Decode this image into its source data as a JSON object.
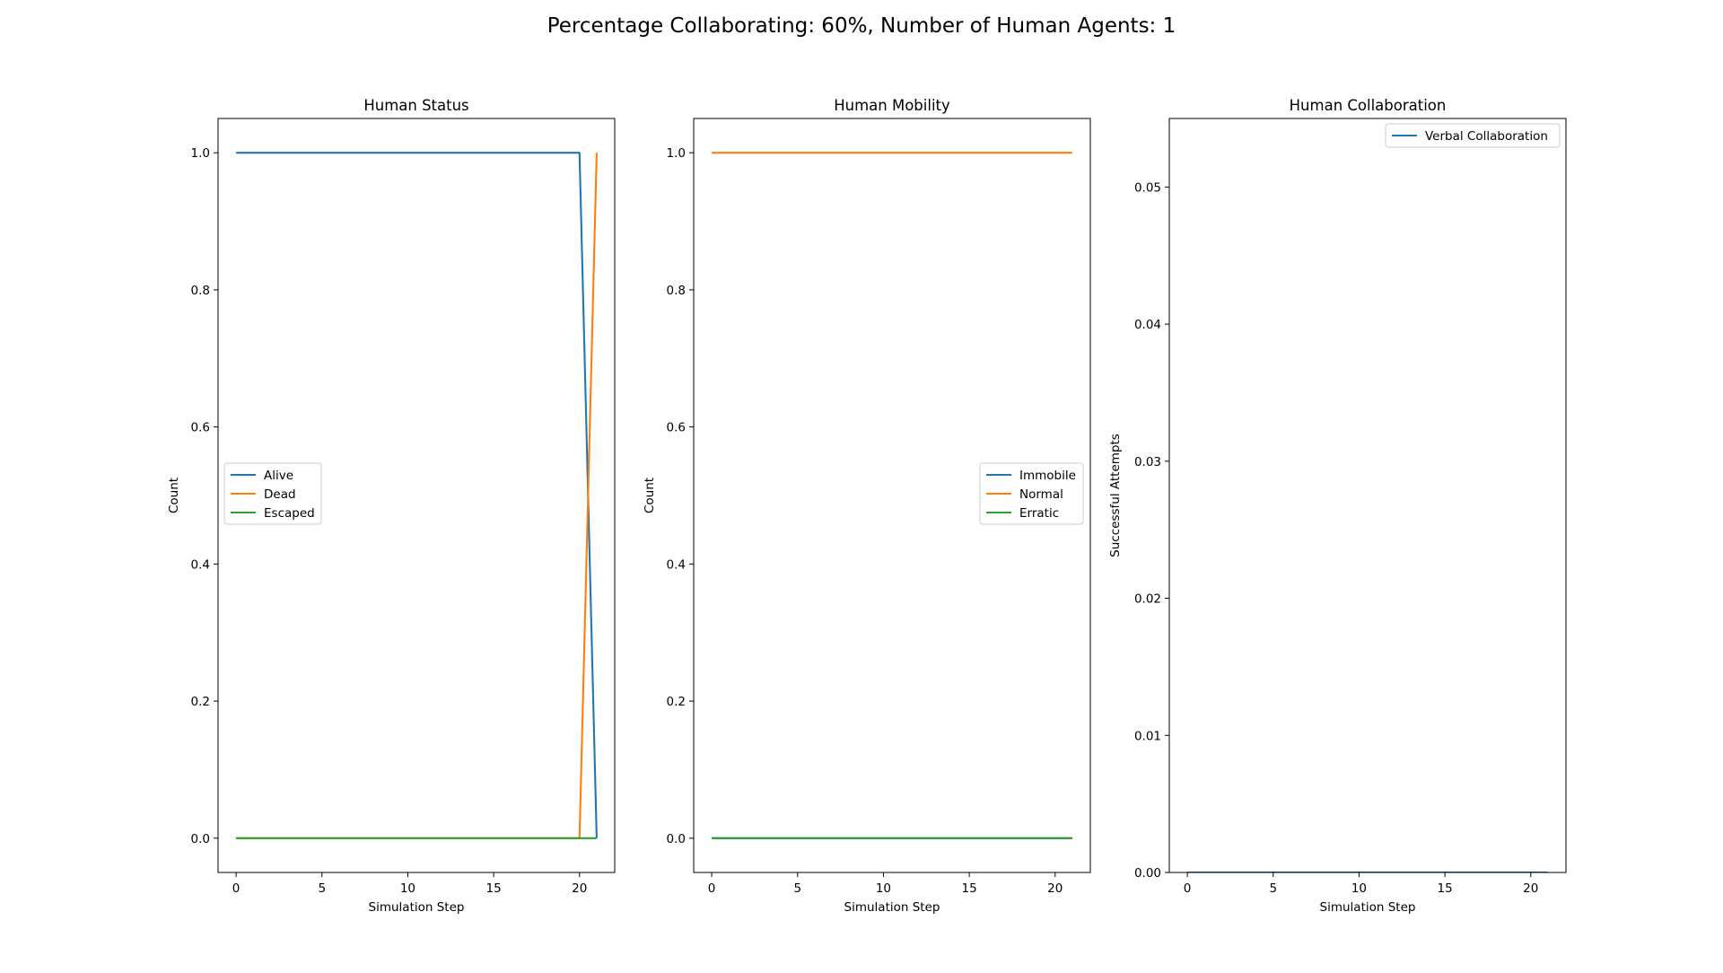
{
  "figure": {
    "title": "Percentage Collaborating: 60%, Number of Human Agents: 1"
  },
  "colors": {
    "blue": "#1f77b4",
    "orange": "#ff7f0e",
    "green": "#2ca02c"
  },
  "chart_data": [
    {
      "type": "line",
      "title": "Human Status",
      "xlabel": "Simulation Step",
      "ylabel": "Count",
      "xlim": [
        -1.05,
        22.05
      ],
      "ylim": [
        -0.05,
        1.05
      ],
      "xticks": [
        0,
        5,
        10,
        15,
        20
      ],
      "yticks": [
        0.0,
        0.2,
        0.4,
        0.6,
        0.8,
        1.0
      ],
      "ytick_labels": [
        "0.0",
        "0.2",
        "0.4",
        "0.6",
        "0.8",
        "1.0"
      ],
      "grid": false,
      "legend": "center-left",
      "x": [
        0,
        1,
        2,
        3,
        4,
        5,
        6,
        7,
        8,
        9,
        10,
        11,
        12,
        13,
        14,
        15,
        16,
        17,
        18,
        19,
        20,
        21
      ],
      "series": [
        {
          "name": "Alive",
          "color": "#1f77b4",
          "values": [
            1,
            1,
            1,
            1,
            1,
            1,
            1,
            1,
            1,
            1,
            1,
            1,
            1,
            1,
            1,
            1,
            1,
            1,
            1,
            1,
            1,
            0
          ]
        },
        {
          "name": "Dead",
          "color": "#ff7f0e",
          "values": [
            0,
            0,
            0,
            0,
            0,
            0,
            0,
            0,
            0,
            0,
            0,
            0,
            0,
            0,
            0,
            0,
            0,
            0,
            0,
            0,
            0,
            1
          ]
        },
        {
          "name": "Escaped",
          "color": "#2ca02c",
          "values": [
            0,
            0,
            0,
            0,
            0,
            0,
            0,
            0,
            0,
            0,
            0,
            0,
            0,
            0,
            0,
            0,
            0,
            0,
            0,
            0,
            0,
            0
          ]
        }
      ]
    },
    {
      "type": "line",
      "title": "Human Mobility",
      "xlabel": "Simulation Step",
      "ylabel": "Count",
      "xlim": [
        -1.05,
        22.05
      ],
      "ylim": [
        -0.05,
        1.05
      ],
      "xticks": [
        0,
        5,
        10,
        15,
        20
      ],
      "yticks": [
        0.0,
        0.2,
        0.4,
        0.6,
        0.8,
        1.0
      ],
      "ytick_labels": [
        "0.0",
        "0.2",
        "0.4",
        "0.6",
        "0.8",
        "1.0"
      ],
      "grid": false,
      "legend": "center-right",
      "x": [
        0,
        1,
        2,
        3,
        4,
        5,
        6,
        7,
        8,
        9,
        10,
        11,
        12,
        13,
        14,
        15,
        16,
        17,
        18,
        19,
        20,
        21
      ],
      "series": [
        {
          "name": "Immobile",
          "color": "#1f77b4",
          "values": [
            0,
            0,
            0,
            0,
            0,
            0,
            0,
            0,
            0,
            0,
            0,
            0,
            0,
            0,
            0,
            0,
            0,
            0,
            0,
            0,
            0,
            0
          ]
        },
        {
          "name": "Normal",
          "color": "#ff7f0e",
          "values": [
            1,
            1,
            1,
            1,
            1,
            1,
            1,
            1,
            1,
            1,
            1,
            1,
            1,
            1,
            1,
            1,
            1,
            1,
            1,
            1,
            1,
            1
          ]
        },
        {
          "name": "Erratic",
          "color": "#2ca02c",
          "values": [
            0,
            0,
            0,
            0,
            0,
            0,
            0,
            0,
            0,
            0,
            0,
            0,
            0,
            0,
            0,
            0,
            0,
            0,
            0,
            0,
            0,
            0
          ]
        }
      ]
    },
    {
      "type": "line",
      "title": "Human Collaboration",
      "xlabel": "Simulation Step",
      "ylabel": "Successful Attempts",
      "xlim": [
        -1.05,
        22.05
      ],
      "ylim": [
        0.0,
        0.055
      ],
      "xticks": [
        0,
        5,
        10,
        15,
        20
      ],
      "yticks": [
        0.0,
        0.01,
        0.02,
        0.03,
        0.04,
        0.05
      ],
      "ytick_labels": [
        "0.00",
        "0.01",
        "0.02",
        "0.03",
        "0.04",
        "0.05"
      ],
      "grid": false,
      "legend": "top-right",
      "x": [
        0,
        1,
        2,
        3,
        4,
        5,
        6,
        7,
        8,
        9,
        10,
        11,
        12,
        13,
        14,
        15,
        16,
        17,
        18,
        19,
        20,
        21
      ],
      "series": [
        {
          "name": "Verbal Collaboration",
          "color": "#1f77b4",
          "values": [
            0,
            0,
            0,
            0,
            0,
            0,
            0,
            0,
            0,
            0,
            0,
            0,
            0,
            0,
            0,
            0,
            0,
            0,
            0,
            0,
            0,
            0
          ]
        }
      ]
    }
  ]
}
